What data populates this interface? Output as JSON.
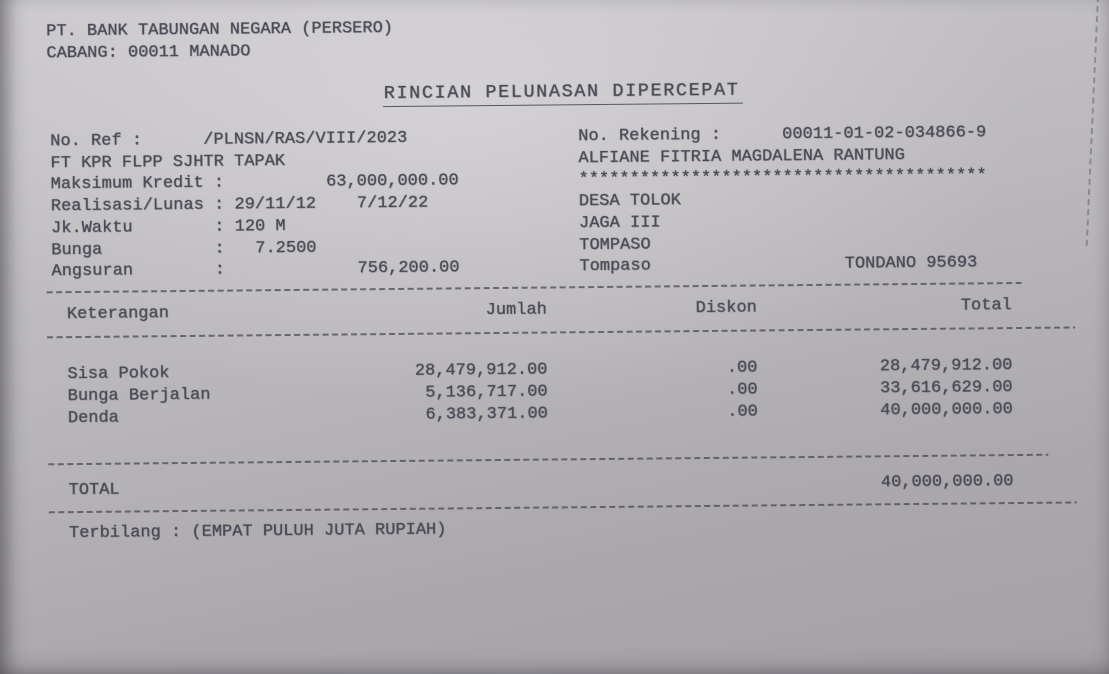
{
  "page": {
    "bank_name": "PT. BANK TABUNGAN NEGARA (PERSERO)",
    "branch_line": "CABANG: 00011 MANADO",
    "title": "RINCIAN PELUNASAN DIPERCEPAT"
  },
  "loan_details": {
    "lines": [
      "No. Ref :      /PLNSN/RAS/VIII/2023",
      "FT KPR FLPP SJHTR TAPAK",
      "Maksimum Kredit :          63,000,000.00",
      "Realisasi/Lunas : 29/11/12    7/12/22",
      "Jk.Waktu        : 120 M",
      "Bunga           :   7.2500",
      "Angsuran        :             756,200.00"
    ]
  },
  "account_details": {
    "lines": [
      "No. Rekening :      00011-01-02-034866-9",
      "ALFIANE FITRIA MAGDALENA RANTUNG",
      "****************************************",
      "DESA TOLOK",
      "JAGA III",
      "TOMPASO",
      "Tompaso                   TONDANO 95693"
    ]
  },
  "table": {
    "headers": {
      "keterangan": "Keterangan",
      "jumlah": "Jumlah",
      "diskon": "Diskon",
      "total": "Total"
    },
    "rows": [
      {
        "keterangan": "Sisa Pokok",
        "jumlah": "28,479,912.00",
        "diskon": ".00",
        "total": "28,479,912.00"
      },
      {
        "keterangan": "Bunga Berjalan",
        "jumlah": "5,136,717.00",
        "diskon": ".00",
        "total": "33,616,629.00"
      },
      {
        "keterangan": "Denda",
        "jumlah": "6,383,371.00",
        "diskon": ".00",
        "total": "40,000,000.00"
      }
    ],
    "total_label": "TOTAL",
    "total_value": "40,000,000.00"
  },
  "terbilang_line": "Terbilang : (EMPAT PULUH JUTA RUPIAH)"
}
